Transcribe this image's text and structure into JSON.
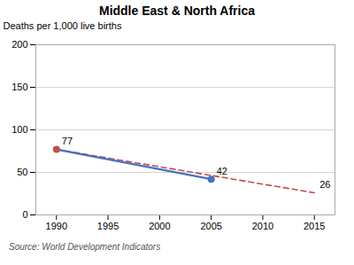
{
  "chart_data": {
    "type": "line",
    "title": "Middle East & North Africa",
    "ylabel": "Deaths per 1,000 live births",
    "source": "Source: World Development Indicators",
    "xlim": [
      1988,
      2017
    ],
    "ylim": [
      0,
      200
    ],
    "xticks": [
      1990,
      1995,
      2000,
      2005,
      2010,
      2015
    ],
    "yticks": [
      0,
      50,
      100,
      150,
      200
    ],
    "grid": "y",
    "series": [
      {
        "x": [
          1990,
          2015
        ],
        "values": [
          77,
          26
        ],
        "color": "#C0504D",
        "line_style": "dashed"
      },
      {
        "x": [
          1990,
          2005
        ],
        "values": [
          77,
          42
        ],
        "color": "#4472C4",
        "line_style": "solid"
      },
      {
        "type": "scatter",
        "x": [
          1990,
          2005
        ],
        "values": [
          77,
          42
        ],
        "colors": [
          "#C0504D",
          "#4472C4"
        ],
        "marker": "circle"
      }
    ],
    "annotations": [
      {
        "x": 1990,
        "y": 77,
        "text": "77"
      },
      {
        "x": 2005,
        "y": 42,
        "text": "42"
      },
      {
        "x": 2015,
        "y": 26,
        "text": "26"
      }
    ]
  }
}
